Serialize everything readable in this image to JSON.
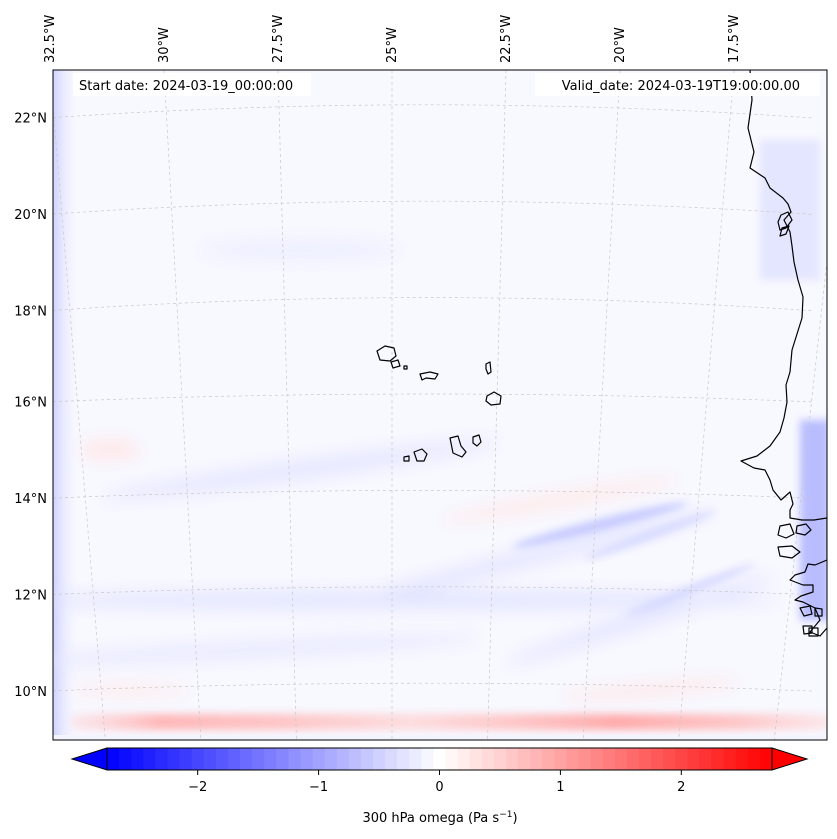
{
  "map": {
    "variable": "300 hPa omega",
    "units": "Pa s",
    "units_exponent": "−1",
    "start_date_label": "Start date: 2024-03-19_00:00:00",
    "valid_date_label": "Valid_date: 2024-03-19T19:00:00.00",
    "lon_labels": [
      {
        "text": "32.5°W",
        "lon": -32.5
      },
      {
        "text": "30°W",
        "lon": -30
      },
      {
        "text": "27.5°W",
        "lon": -27.5
      },
      {
        "text": "25°W",
        "lon": -25
      },
      {
        "text": "22.5°W",
        "lon": -22.5
      },
      {
        "text": "20°W",
        "lon": -20
      },
      {
        "text": "17.5°W",
        "lon": -17.5
      }
    ],
    "lat_labels": [
      {
        "text": "22°N",
        "lat": 22
      },
      {
        "text": "20°N",
        "lat": 20
      },
      {
        "text": "18°N",
        "lat": 18
      },
      {
        "text": "16°N",
        "lat": 16
      },
      {
        "text": "14°N",
        "lat": 14
      },
      {
        "text": "12°N",
        "lat": 12
      },
      {
        "text": "10°N",
        "lat": 10
      }
    ],
    "colorbar": {
      "min": -2.75,
      "max": 2.75,
      "ticks": [
        {
          "value": -2,
          "text": "−2"
        },
        {
          "value": -1,
          "text": "−1"
        },
        {
          "value": 0,
          "text": "0"
        },
        {
          "value": 1,
          "text": "1"
        },
        {
          "value": 2,
          "text": "2"
        }
      ],
      "colormap": "bwr",
      "extend": "both"
    },
    "colors": {
      "negative": "#0000ff",
      "neutral": "#ffffff",
      "positive": "#ff0000",
      "coastline": "#000000",
      "gridline": "#c8c8c8"
    }
  }
}
